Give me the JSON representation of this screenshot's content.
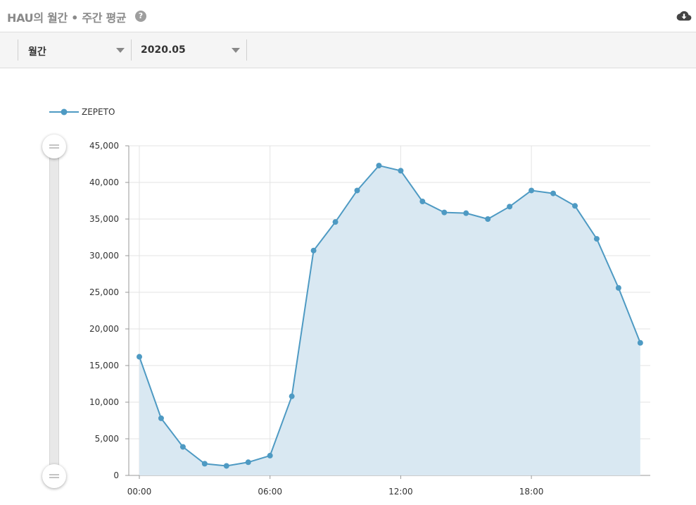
{
  "header": {
    "title": "HAU의 월간 • 주간 평균",
    "help_icon": "question-circle-icon",
    "download_icon": "cloud-download-icon"
  },
  "filters": {
    "period": {
      "value": "월간",
      "icon": "caret-down-icon"
    },
    "date": {
      "value": "2020.05",
      "icon": "caret-down-icon"
    }
  },
  "colors": {
    "series_line": "#4e9ac3",
    "series_fill": "#d9e8f2",
    "grid": "#e3e3e3",
    "axis": "#999999"
  },
  "chart_data": {
    "type": "area",
    "legend": {
      "position": "top-left",
      "entries": [
        "ZEPETO"
      ]
    },
    "x_tick_labels": [
      "00:00",
      "06:00",
      "12:00",
      "18:00"
    ],
    "x_tick_hours": [
      0,
      6,
      12,
      18
    ],
    "x": [
      0,
      1,
      2,
      3,
      4,
      5,
      6,
      7,
      8,
      9,
      10,
      11,
      12,
      13,
      14,
      15,
      16,
      17,
      18,
      19,
      20,
      21,
      22,
      23
    ],
    "series": [
      {
        "name": "ZEPETO",
        "values": [
          16200,
          7800,
          3900,
          1600,
          1300,
          1800,
          2700,
          10800,
          30700,
          34600,
          38900,
          42300,
          41600,
          37400,
          35900,
          35800,
          35000,
          36700,
          38900,
          38500,
          36800,
          32300,
          25600,
          18100
        ]
      }
    ],
    "y_ticks": [
      0,
      5000,
      10000,
      15000,
      20000,
      25000,
      30000,
      35000,
      40000,
      45000
    ],
    "y_tick_labels": [
      "0",
      "5,000",
      "10,000",
      "15,000",
      "20,000",
      "25,000",
      "30,000",
      "35,000",
      "40,000",
      "45,000"
    ],
    "ylim": [
      0,
      45000
    ],
    "grid": true,
    "range_slider": {
      "orientation": "vertical",
      "handles": 2,
      "handle_icon": "drag-handle-icon"
    }
  }
}
